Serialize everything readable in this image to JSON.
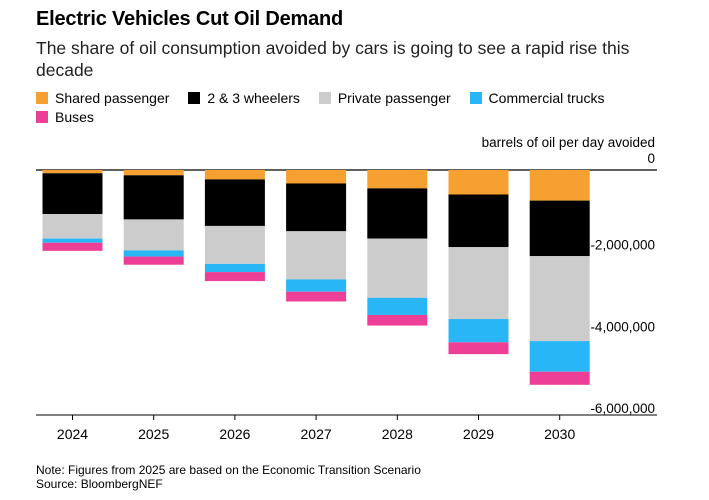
{
  "title": "Electric Vehicles Cut Oil Demand",
  "subtitle": "The share of oil consumption avoided by cars is going to see a rapid rise this decade",
  "note": "Note: Figures from 2025 are based on the Economic Transition Scenario",
  "source": "Source: BloombergNEF",
  "colors": {
    "shared_passenger": "#f5a031",
    "two_three_wheelers": "#000000",
    "private_passenger": "#cccccc",
    "commercial_trucks": "#29b6f6",
    "buses": "#ee3f96"
  },
  "chart_data": {
    "type": "bar",
    "stacked": true,
    "title": "Electric Vehicles Cut Oil Demand",
    "subtitle": "The share of oil consumption avoided by cars is going to see a rapid rise this decade",
    "ylabel": "barrels of oil per day avoided",
    "ylim": [
      -6000000,
      0
    ],
    "yticks": [
      0,
      -2000000,
      -4000000,
      -6000000
    ],
    "ytick_labels": [
      "0",
      "-2,000,000",
      "-4,000,000",
      "-6,000,000"
    ],
    "legend_position": "top",
    "grid": false,
    "categories": [
      "2024",
      "2025",
      "2026",
      "2027",
      "2028",
      "2029",
      "2030"
    ],
    "series": [
      {
        "name": "Shared passenger",
        "color": "#f5a031",
        "values": [
          -80000,
          -130000,
          -230000,
          -330000,
          -450000,
          -600000,
          -750000
        ]
      },
      {
        "name": "2 & 3 wheelers",
        "color": "#000000",
        "values": [
          -1000000,
          -1080000,
          -1140000,
          -1170000,
          -1230000,
          -1290000,
          -1360000
        ]
      },
      {
        "name": "Private passenger",
        "color": "#cccccc",
        "values": [
          -600000,
          -760000,
          -930000,
          -1180000,
          -1450000,
          -1760000,
          -2080000
        ]
      },
      {
        "name": "Commercial trucks",
        "color": "#29b6f6",
        "values": [
          -100000,
          -150000,
          -200000,
          -300000,
          -420000,
          -570000,
          -750000
        ]
      },
      {
        "name": "Buses",
        "color": "#ee3f96",
        "values": [
          -200000,
          -200000,
          -220000,
          -240000,
          -260000,
          -290000,
          -320000
        ]
      }
    ]
  }
}
